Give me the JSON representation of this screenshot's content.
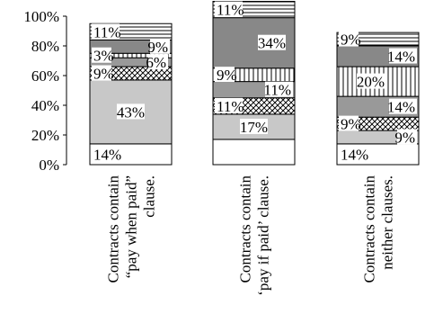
{
  "chart_data": {
    "type": "bar",
    "stacked": true,
    "categories": [
      [
        "Contracts contain",
        "“pay when paid”",
        "clause."
      ],
      [
        "Contracts contain",
        "‘pay if paid’ clause."
      ],
      [
        "Contracts contain",
        "neither clauses."
      ]
    ],
    "ylim": [
      0,
      100
    ],
    "y_ticks": [
      "0%",
      "20%",
      "40%",
      "60%",
      "80%",
      "100%"
    ],
    "grid": false,
    "series": [
      {
        "values": [
          14,
          17,
          14
        ],
        "color": "#ffffff",
        "pattern": "none"
      },
      {
        "values": [
          43,
          17,
          9
        ],
        "color": "#c8c8c8",
        "pattern": "none"
      },
      {
        "values": [
          9,
          11,
          9
        ],
        "color": "#ffffff",
        "pattern": "crosshatch"
      },
      {
        "values": [
          6,
          11,
          14
        ],
        "color": "#999999",
        "pattern": "none"
      },
      {
        "values": [
          3,
          9,
          20
        ],
        "color": "#ffffff",
        "pattern": "vertical-lines"
      },
      {
        "values": [
          9,
          34,
          14
        ],
        "color": "#888888",
        "pattern": "none"
      },
      {
        "values": [
          11,
          11,
          9
        ],
        "color": "#ffffff",
        "pattern": "horizontal-lines"
      }
    ],
    "data_labels": [
      [
        "14%",
        "43%",
        "9%",
        "6%",
        "3%",
        "9%",
        "11%"
      ],
      [
        "",
        "17%",
        "11%",
        "11%",
        "9%",
        "34%",
        "11%"
      ],
      [
        "14%",
        "9%",
        "9%",
        "14%",
        "20%",
        "14%",
        "9%"
      ]
    ]
  }
}
